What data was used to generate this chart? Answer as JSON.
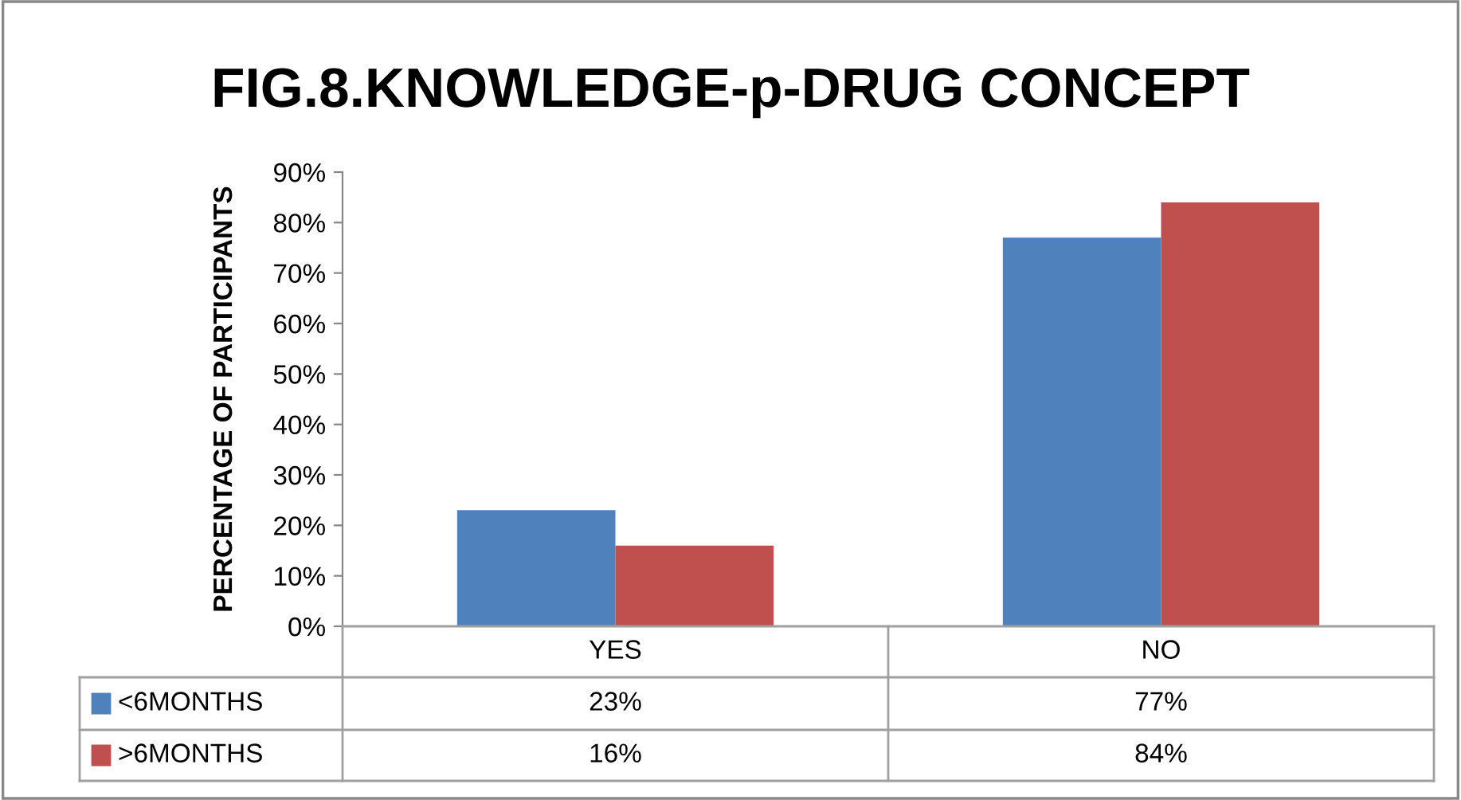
{
  "chart_data": {
    "type": "bar",
    "title": "FIG.8.KNOWLEDGE-p-DRUG CONCEPT",
    "ylabel": "PERCENTAGE OF PARTICIPANTS",
    "categories": [
      "YES",
      "NO"
    ],
    "series": [
      {
        "name": "<6MONTHS",
        "color": "#4f81bd",
        "values": [
          23,
          77
        ],
        "value_labels": [
          "23%",
          "77%"
        ]
      },
      {
        "name": ">6MONTHS",
        "color": "#c0504d",
        "values": [
          16,
          84
        ],
        "value_labels": [
          "16%",
          "84%"
        ]
      }
    ],
    "ylim": [
      0,
      90
    ],
    "yticks": [
      {
        "value": 0,
        "label": "0%"
      },
      {
        "value": 10,
        "label": "10%"
      },
      {
        "value": 20,
        "label": "20%"
      },
      {
        "value": 30,
        "label": "30%"
      },
      {
        "value": 40,
        "label": "40%"
      },
      {
        "value": 50,
        "label": "50%"
      },
      {
        "value": 60,
        "label": "60%"
      },
      {
        "value": 70,
        "label": "70%"
      },
      {
        "value": 80,
        "label": "80%"
      },
      {
        "value": 90,
        "label": "90%"
      }
    ],
    "grid": false,
    "legend": "bottom"
  }
}
